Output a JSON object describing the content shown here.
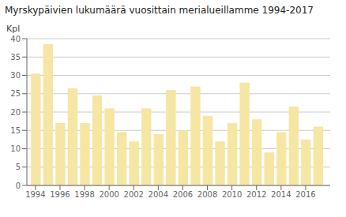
{
  "chart_data": {
    "type": "bar",
    "title": "Myrskypäivien lukumäärä vuosittain merialueillamme 1994-2017",
    "ylabel": "Kpl",
    "x": [
      1994,
      1995,
      1996,
      1997,
      1998,
      1999,
      2000,
      2001,
      2002,
      2003,
      2004,
      2005,
      2006,
      2007,
      2008,
      2009,
      2010,
      2011,
      2012,
      2013,
      2014,
      2015,
      2016,
      2017
    ],
    "values": [
      30.5,
      38.5,
      17,
      26.5,
      17,
      24.5,
      21,
      14.5,
      12,
      21,
      14,
      26,
      15,
      27,
      19,
      12,
      17,
      28,
      18,
      9,
      14.5,
      21.5,
      12.5,
      16
    ],
    "color": "#f5e6a3",
    "xlim": [
      1993.3,
      2018
    ],
    "xticks": [
      1994,
      1996,
      1998,
      2000,
      2002,
      2004,
      2006,
      2008,
      2010,
      2012,
      2014,
      2016
    ],
    "ylim": [
      0,
      40
    ],
    "yticks": [
      0,
      5,
      10,
      15,
      20,
      25,
      30,
      35,
      40
    ],
    "grid": true
  }
}
